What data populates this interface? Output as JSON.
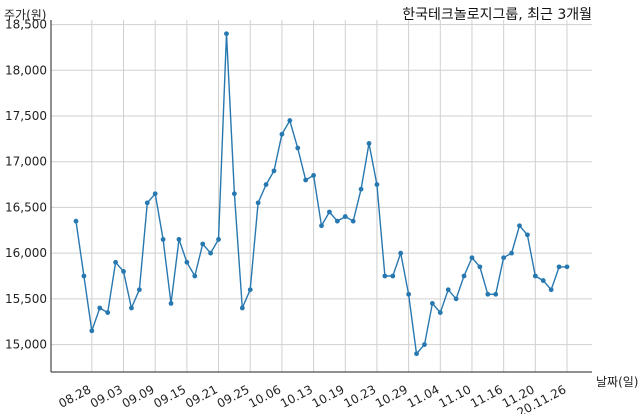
{
  "chart_data": {
    "type": "line",
    "title": "한국테크놀로지그룹, 최근 3개월",
    "ylabel": "주가(원)",
    "xlabel": "날짜(일)",
    "ylim": [
      14700,
      18550
    ],
    "y_ticks": [
      15000,
      15500,
      16000,
      16500,
      17000,
      17500,
      18000,
      18500
    ],
    "y_tick_labels": [
      "15,000",
      "15,500",
      "16,000",
      "16,500",
      "17,000",
      "17,500",
      "18,000",
      "18,500"
    ],
    "x_tick_labels": [
      "08.28",
      "09.03",
      "09.09",
      "09.15",
      "09.21",
      "09.25",
      "10.06",
      "10.13",
      "10.19",
      "10.23",
      "10.29",
      "11.04",
      "11.10",
      "11.16",
      "11.20",
      "20.11.26"
    ],
    "x_tick_positions": [
      2,
      6,
      10,
      14,
      18,
      22,
      26,
      30,
      34,
      38,
      42,
      46,
      50,
      54,
      58,
      62
    ],
    "grid": true,
    "color": "#2878b0",
    "series": [
      {
        "x": [
          0,
          1,
          2,
          3,
          4,
          5,
          6,
          7,
          8,
          9,
          10,
          11,
          12,
          13,
          14,
          15,
          16,
          17,
          18,
          19,
          20,
          21,
          22,
          23,
          24,
          25,
          26,
          27,
          28,
          29,
          30,
          31,
          32,
          33,
          34,
          35,
          36,
          37,
          38,
          39,
          40,
          41,
          42,
          43,
          44,
          45,
          46,
          47,
          48,
          49,
          50,
          51,
          52,
          53,
          54,
          55,
          56,
          57,
          58,
          59,
          60,
          61,
          62
        ],
        "values": [
          16350,
          15750,
          15150,
          15400,
          15350,
          15900,
          15800,
          15400,
          15600,
          16550,
          16650,
          16150,
          15450,
          16150,
          15900,
          15750,
          16100,
          16000,
          16150,
          18400,
          16650,
          15400,
          15600,
          16550,
          16750,
          16900,
          17300,
          17450,
          17150,
          16800,
          16850,
          16300,
          16450,
          16350,
          16400,
          16350,
          16700,
          17200,
          16750,
          15750,
          15750,
          16000,
          15550,
          14900,
          15000,
          15450,
          15350,
          15600,
          15500,
          15750,
          15950,
          15850,
          15550,
          15550,
          15950,
          16000,
          16300,
          16200,
          15750,
          15700,
          15600,
          15850,
          15850
        ]
      }
    ]
  }
}
